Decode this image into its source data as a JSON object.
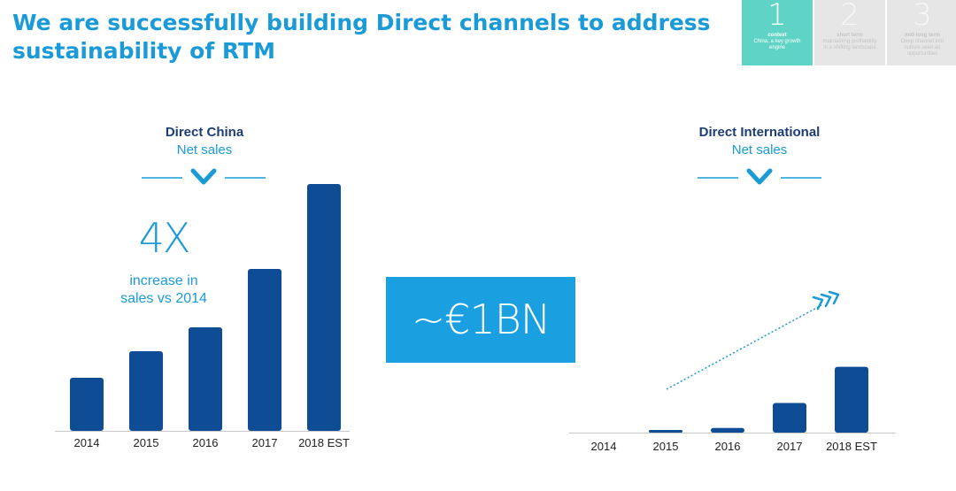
{
  "header": {
    "title": "We are successfully building Direct channels to address sustainability of RTM"
  },
  "nav": [
    {
      "number": "1",
      "heading": "context",
      "text": "China, a key growth engine",
      "active": true
    },
    {
      "number": "2",
      "heading": "short term",
      "text": "maintaining profitability in a shifting landscape",
      "active": false
    },
    {
      "number": "3",
      "heading": "mid-long term",
      "text": "Deep channel into culture seen as opportunities",
      "active": false
    }
  ],
  "left_annotation": {
    "big": "4X",
    "text": "increase in sales vs 2014"
  },
  "callout": {
    "text": "~€1BN"
  },
  "colors": {
    "bar": "#0e4c96",
    "accent": "#1a9bd7",
    "title_dark": "#1d3d74",
    "callout_bg": "#1a9fe0",
    "nav_active": "#5fd3c6"
  },
  "chart_data": [
    {
      "type": "bar",
      "title": "Direct China",
      "subtitle": "Net sales",
      "categories": [
        "2014",
        "2015",
        "2016",
        "2017",
        "2018 EST"
      ],
      "values": [
        1.0,
        1.5,
        1.95,
        3.05,
        4.65
      ],
      "ylim": [
        0,
        5
      ],
      "xlabel": "",
      "ylabel": "",
      "grid": false
    },
    {
      "type": "bar",
      "title": "Direct International",
      "subtitle": "Net sales",
      "categories": [
        "2014",
        "2015",
        "2016",
        "2017",
        "2018 EST"
      ],
      "values": [
        0,
        0.03,
        0.07,
        0.45,
        1.0
      ],
      "ylim": [
        0,
        1.6
      ],
      "xlabel": "",
      "ylabel": "",
      "grid": false
    }
  ]
}
